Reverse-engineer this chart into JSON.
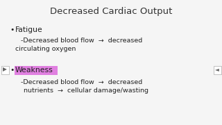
{
  "background_color": "#f5f5f5",
  "title": "Decreased Cardiac Output",
  "title_color": "#333333",
  "bullet1": "Fatigue",
  "bullet1_sub1": "-Decreased blood flow  →  decreased",
  "bullet1_sub2": "circulating oxygen",
  "bullet2": "Weakness",
  "bullet2_highlight_color": "#e080e0",
  "bullet2_sub1a": "-Decreased blood flow  →  decreased",
  "bullet2_sub1b": "nutrients  →  cellular damage/wasting",
  "text_color": "#222222",
  "nav_color": "#666666",
  "font_size_title": 9.5,
  "font_size_bullet": 7.8,
  "font_size_sub": 6.8,
  "font_size_nav": 5.5
}
